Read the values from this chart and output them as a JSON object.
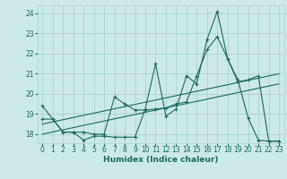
{
  "xlabel": "Humidex (Indice chaleur)",
  "xlim": [
    -0.5,
    23.5
  ],
  "ylim": [
    17.55,
    24.4
  ],
  "yticks": [
    18,
    19,
    20,
    21,
    22,
    23,
    24
  ],
  "xticks": [
    0,
    1,
    2,
    3,
    4,
    5,
    6,
    7,
    8,
    9,
    10,
    11,
    12,
    13,
    14,
    15,
    16,
    17,
    18,
    19,
    20,
    21,
    22,
    23
  ],
  "bg_color": "#cce9e7",
  "grid_color": "#aad3d0",
  "line_color": "#1a6b5e",
  "line1_y": [
    19.4,
    18.75,
    18.1,
    18.1,
    17.7,
    17.9,
    17.9,
    17.85,
    17.85,
    17.85,
    19.25,
    21.5,
    18.9,
    19.25,
    20.9,
    20.5,
    22.7,
    24.1,
    21.75,
    20.7,
    18.8,
    17.7,
    17.65,
    17.65
  ],
  "line2_y": [
    18.75,
    18.75,
    18.1,
    18.1,
    18.1,
    18.0,
    18.0,
    19.85,
    19.5,
    19.2,
    19.2,
    19.25,
    19.3,
    19.5,
    19.6,
    20.9,
    22.2,
    22.85,
    21.75,
    20.6,
    20.7,
    20.9,
    17.65,
    17.65
  ],
  "trend1_x": [
    0,
    23
  ],
  "trend1_y": [
    18.0,
    20.5
  ],
  "trend2_x": [
    0,
    23
  ],
  "trend2_y": [
    18.5,
    21.0
  ]
}
